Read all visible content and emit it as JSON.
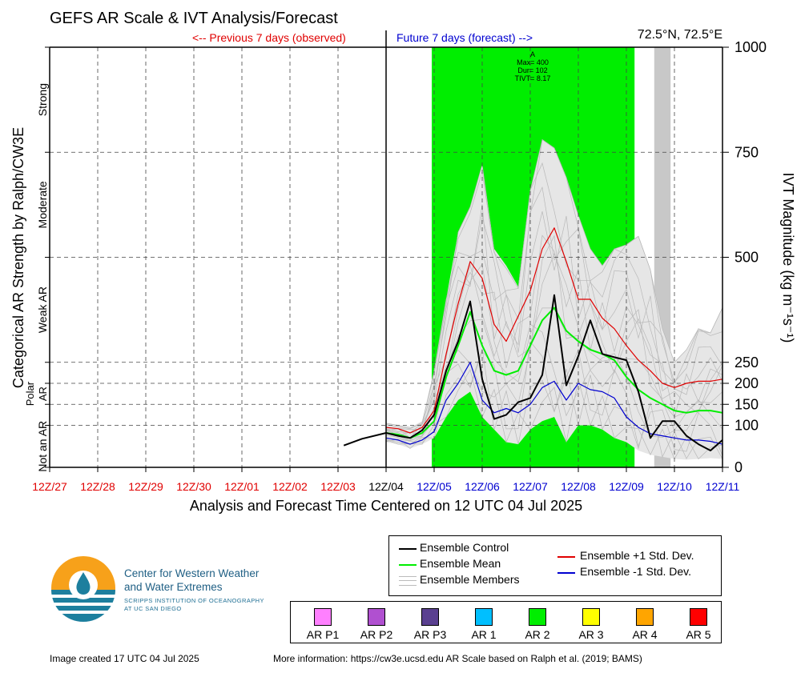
{
  "header": {
    "title": "GEFS AR Scale & IVT Analysis/Forecast",
    "location": "72.5°N, 72.5°E",
    "previous_label": "<-- Previous 7 days (observed)",
    "future_label": "Future 7 days (forecast) -->"
  },
  "colors": {
    "observed": "#e00000",
    "forecast": "#0000d0",
    "control": "#000000",
    "mean": "#00ee00",
    "members": "#b8b8b8",
    "plus_std": "#e00000",
    "minus_std": "#0000d0",
    "ar2_band": "#00ee00",
    "gray_band": "#c8c8c8"
  },
  "chart_data": {
    "type": "line",
    "xlabel": "Analysis and Forecast Time Centered on 12 UTC 04 Jul 2025",
    "ylabel_left": "Categorical AR Strength by Ralph/CW3E",
    "ylabel_right": "IVT Magnitude (kg m⁻¹s⁻¹)",
    "x_unit": "days since 12Z/27 Jun 2025",
    "xlim": [
      0,
      14
    ],
    "ylim": [
      0,
      1000
    ],
    "x_ticks": [
      {
        "x": 0,
        "label": "12Z/27",
        "period": "observed"
      },
      {
        "x": 1,
        "label": "12Z/28",
        "period": "observed"
      },
      {
        "x": 2,
        "label": "12Z/29",
        "period": "observed"
      },
      {
        "x": 3,
        "label": "12Z/30",
        "period": "observed"
      },
      {
        "x": 4,
        "label": "12Z/01",
        "period": "observed"
      },
      {
        "x": 5,
        "label": "12Z/02",
        "period": "observed"
      },
      {
        "x": 6,
        "label": "12Z/03",
        "period": "observed"
      },
      {
        "x": 7,
        "label": "12Z/04",
        "period": "analysis"
      },
      {
        "x": 8,
        "label": "12Z/05",
        "period": "forecast"
      },
      {
        "x": 9,
        "label": "12Z/06",
        "period": "forecast"
      },
      {
        "x": 10,
        "label": "12Z/07",
        "period": "forecast"
      },
      {
        "x": 11,
        "label": "12Z/08",
        "period": "forecast"
      },
      {
        "x": 12,
        "label": "12Z/09",
        "period": "forecast"
      },
      {
        "x": 13,
        "label": "12Z/10",
        "period": "forecast"
      },
      {
        "x": 14,
        "label": "12Z/11",
        "period": "forecast"
      }
    ],
    "y_ticks": [
      0,
      100,
      150,
      200,
      250,
      500,
      750,
      1000
    ],
    "categories": [
      {
        "label": "Not an AR",
        "from": 0,
        "to": 100
      },
      {
        "label": "Polar AR",
        "from": 100,
        "to": 250
      },
      {
        "label": "Weak AR",
        "from": 250,
        "to": 500
      },
      {
        "label": "Moderate",
        "from": 500,
        "to": 750
      },
      {
        "label": "Strong",
        "from": 750,
        "to": 1000
      }
    ],
    "ar_band": {
      "category": "AR 2",
      "x_start": 7.95,
      "x_end": 12.17
    },
    "gray_band": {
      "x_start": 12.58,
      "x_end": 12.92
    },
    "annotation": {
      "x": 10.05,
      "lines": [
        "A",
        "Max= 400",
        "Dur= 102",
        "TIVT= 8.17"
      ]
    },
    "series": [
      {
        "name": "Ensemble Control",
        "x": [
          6.12,
          6.5,
          7,
          7.25,
          7.5,
          7.75,
          8,
          8.25,
          8.5,
          8.75,
          9,
          9.25,
          9.5,
          9.75,
          10,
          10.25,
          10.5,
          10.75,
          11,
          11.25,
          11.5,
          11.75,
          12,
          12.25,
          12.5,
          12.75,
          13,
          13.25,
          13.5,
          13.75,
          14
        ],
        "y": [
          52,
          68,
          82,
          75,
          70,
          88,
          125,
          230,
          300,
          395,
          210,
          115,
          125,
          155,
          165,
          220,
          410,
          195,
          265,
          350,
          270,
          262,
          255,
          180,
          70,
          110,
          110,
          75,
          55,
          40,
          65
        ]
      },
      {
        "name": "Ensemble Mean",
        "x": [
          7,
          7.25,
          7.5,
          7.75,
          8,
          8.25,
          8.5,
          8.75,
          9,
          9.25,
          9.5,
          9.75,
          10,
          10.25,
          10.5,
          10.75,
          11,
          11.25,
          11.5,
          11.75,
          12,
          12.25,
          12.5,
          12.75,
          13,
          13.25,
          13.5,
          13.75,
          14
        ],
        "y": [
          82,
          78,
          70,
          82,
          110,
          215,
          290,
          370,
          290,
          230,
          220,
          230,
          290,
          350,
          380,
          325,
          300,
          280,
          270,
          255,
          215,
          185,
          165,
          150,
          135,
          130,
          135,
          135,
          130
        ]
      },
      {
        "name": "Ensemble +1 Std. Dev.",
        "x": [
          7,
          7.25,
          7.5,
          7.75,
          8,
          8.25,
          8.5,
          8.75,
          9,
          9.25,
          9.5,
          9.75,
          10,
          10.25,
          10.5,
          10.75,
          11,
          11.25,
          11.5,
          11.75,
          12,
          12.25,
          12.5,
          12.75,
          13,
          13.25,
          13.5,
          13.75,
          14
        ],
        "y": [
          95,
          92,
          82,
          95,
          135,
          270,
          390,
          490,
          450,
          340,
          300,
          360,
          420,
          520,
          570,
          490,
          400,
          400,
          355,
          330,
          290,
          255,
          230,
          200,
          190,
          200,
          205,
          205,
          210
        ]
      },
      {
        "name": "Ensemble -1 Std. Dev.",
        "x": [
          7,
          7.25,
          7.5,
          7.75,
          8,
          8.25,
          8.5,
          8.75,
          9,
          9.25,
          9.5,
          9.75,
          10,
          10.25,
          10.5,
          10.75,
          11,
          11.25,
          11.5,
          11.75,
          12,
          12.25,
          12.5,
          12.75,
          13,
          13.25,
          13.5,
          13.75,
          14
        ],
        "y": [
          70,
          65,
          55,
          65,
          85,
          160,
          200,
          250,
          160,
          130,
          140,
          130,
          150,
          190,
          205,
          160,
          200,
          185,
          180,
          165,
          120,
          95,
          80,
          75,
          70,
          65,
          65,
          62,
          55
        ]
      }
    ],
    "members_envelope": {
      "x": [
        7,
        7.25,
        7.5,
        7.75,
        8,
        8.25,
        8.5,
        8.75,
        9,
        9.25,
        9.5,
        9.75,
        10,
        10.25,
        10.5,
        10.75,
        11,
        11.25,
        11.5,
        11.75,
        12,
        12.25,
        12.5,
        12.75,
        13,
        13.25,
        13.5,
        13.75,
        14
      ],
      "upper": [
        105,
        100,
        95,
        110,
        230,
        400,
        560,
        620,
        720,
        520,
        480,
        430,
        660,
        780,
        760,
        690,
        600,
        520,
        480,
        520,
        530,
        550,
        470,
        330,
        250,
        280,
        330,
        320,
        380
      ],
      "lower": [
        60,
        55,
        45,
        55,
        70,
        120,
        160,
        180,
        120,
        90,
        60,
        55,
        90,
        110,
        120,
        60,
        100,
        100,
        90,
        70,
        60,
        40,
        30,
        25,
        20,
        18,
        20,
        22,
        20
      ]
    },
    "legend": {
      "entries": [
        "Ensemble Control",
        "Ensemble Mean",
        "Ensemble Members",
        "Ensemble +1 Std. Dev.",
        "Ensemble -1 Std. Dev."
      ],
      "placement": "bottom-right, below plot"
    },
    "ar_scale_legend": [
      {
        "label": "AR P1",
        "color": "#ff80ff"
      },
      {
        "label": "AR P2",
        "color": "#b050d0"
      },
      {
        "label": "AR P3",
        "color": "#5a4090"
      },
      {
        "label": "AR 1",
        "color": "#00bfff"
      },
      {
        "label": "AR 2",
        "color": "#00ee00"
      },
      {
        "label": "AR 3",
        "color": "#ffff00"
      },
      {
        "label": "AR 4",
        "color": "#ffa500"
      },
      {
        "label": "AR 5",
        "color": "#ff0000"
      }
    ]
  },
  "logo": {
    "org_line1": "Center for Western Weather",
    "org_line2": "and Water Extremes",
    "sub_line1": "SCRIPPS INSTITUTION OF OCEANOGRAPHY",
    "sub_line2": "AT UC SAN DIEGO"
  },
  "footer": {
    "created": "Image created 17 UTC 04 Jul 2025",
    "more_info": "More information: https://cw3e.ucsd.edu AR Scale based on Ralph et al. (2019; BAMS)"
  }
}
